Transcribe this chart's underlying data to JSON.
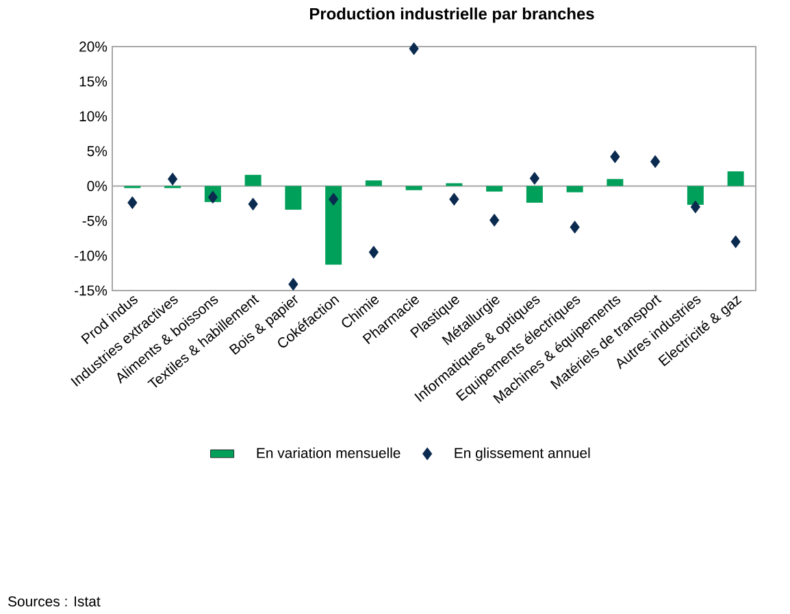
{
  "chart_data": {
    "type": "bar",
    "title": "Production industrielle par branches",
    "categories": [
      "Prod indus",
      "Industries extractives",
      "Aliments & boissons",
      "Textiles & habillement",
      "Bois & papier",
      "Cokéfaction",
      "Chimie",
      "Pharmacie",
      "Plastique",
      "Métallurgie",
      "Informatiques & optiques",
      "Equipements électriques",
      "Machines & équipements",
      "Matériels de transport",
      "Autres industries",
      "Electricité & gaz"
    ],
    "series": [
      {
        "name": "En variation mensuelle",
        "color": "#00a05a",
        "values": [
          -0.3,
          -0.3,
          -2.3,
          1.6,
          -3.4,
          -11.3,
          0.8,
          -0.6,
          0.4,
          -0.8,
          -2.4,
          -0.9,
          1.0,
          null,
          -2.7,
          2.1
        ]
      },
      {
        "name": "En glissement annuel",
        "type": "scatter",
        "marker": "diamond",
        "color": "#0a2a4f",
        "values": [
          -2.4,
          1.0,
          -1.6,
          -2.6,
          -14.1,
          -1.9,
          -9.5,
          19.7,
          -1.9,
          -4.9,
          1.1,
          -5.9,
          4.2,
          3.5,
          -3.0,
          -8.0
        ]
      }
    ],
    "ylim": [
      -15,
      20
    ],
    "yticks": [
      {
        "value": -15,
        "label": "-15%"
      },
      {
        "value": -10,
        "label": "-10%"
      },
      {
        "value": -5,
        "label": "-5%"
      },
      {
        "value": 0,
        "label": "0%"
      },
      {
        "value": 5,
        "label": "5%"
      },
      {
        "value": 10,
        "label": "10%"
      },
      {
        "value": 15,
        "label": "15%"
      },
      {
        "value": 20,
        "label": "20%"
      }
    ],
    "legend": "bottom",
    "annotations": [
      "Sources : Istat"
    ]
  }
}
